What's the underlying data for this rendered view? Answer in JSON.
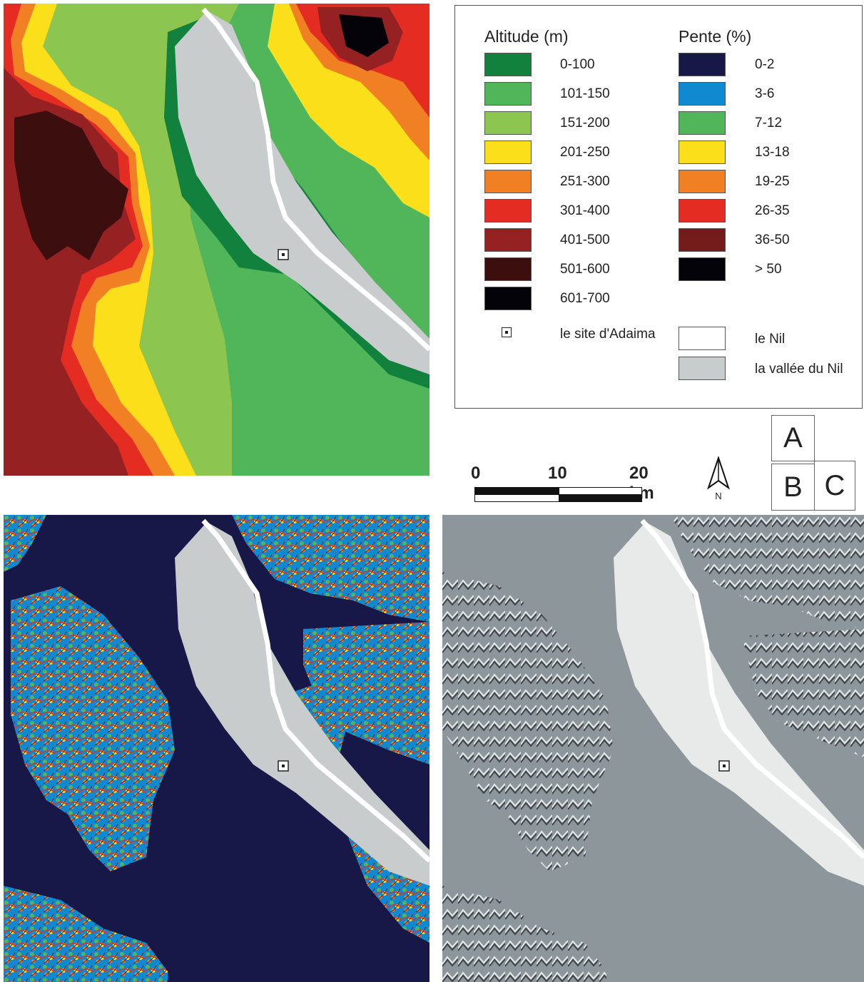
{
  "legend": {
    "altitude_title": "Altitude (m)",
    "slope_title": "Pente (%)",
    "altitude_classes": [
      {
        "label": "0-100",
        "color": "#11813d"
      },
      {
        "label": "101-150",
        "color": "#51b65a"
      },
      {
        "label": "151-200",
        "color": "#8cc54f"
      },
      {
        "label": "201-250",
        "color": "#fbdf1b"
      },
      {
        "label": "251-300",
        "color": "#f17f24"
      },
      {
        "label": "301-400",
        "color": "#e42c23"
      },
      {
        "label": "401-500",
        "color": "#962122"
      },
      {
        "label": "501-600",
        "color": "#3c0e0e"
      },
      {
        "label": "601-700",
        "color": "#05030a"
      }
    ],
    "slope_classes": [
      {
        "label": "0-2",
        "color": "#171748"
      },
      {
        "label": "3-6",
        "color": "#1189d0"
      },
      {
        "label": "7-12",
        "color": "#51b65a"
      },
      {
        "label": "13-18",
        "color": "#fbdf1b"
      },
      {
        "label": "19-25",
        "color": "#f17f24"
      },
      {
        "label": "26-35",
        "color": "#e42c23"
      },
      {
        "label": "36-50",
        "color": "#741c1c"
      },
      {
        "label": "> 50",
        "color": "#05030a"
      }
    ],
    "site_label": "le site d'Adaima",
    "nile_label": "le Nil",
    "nile_color": "#ffffff",
    "valley_label": "la vallée du Nil",
    "valley_color": "#c9cccc"
  },
  "scale": {
    "ticks": [
      "0",
      "10",
      "20 km"
    ]
  },
  "north": {
    "label": "N"
  },
  "locator": {
    "a": "A",
    "b": "B",
    "c": "C"
  },
  "colors": {
    "slope_background": "#171748",
    "hillshade_background": "#8c969b",
    "valley_light": "#e8eaea"
  }
}
